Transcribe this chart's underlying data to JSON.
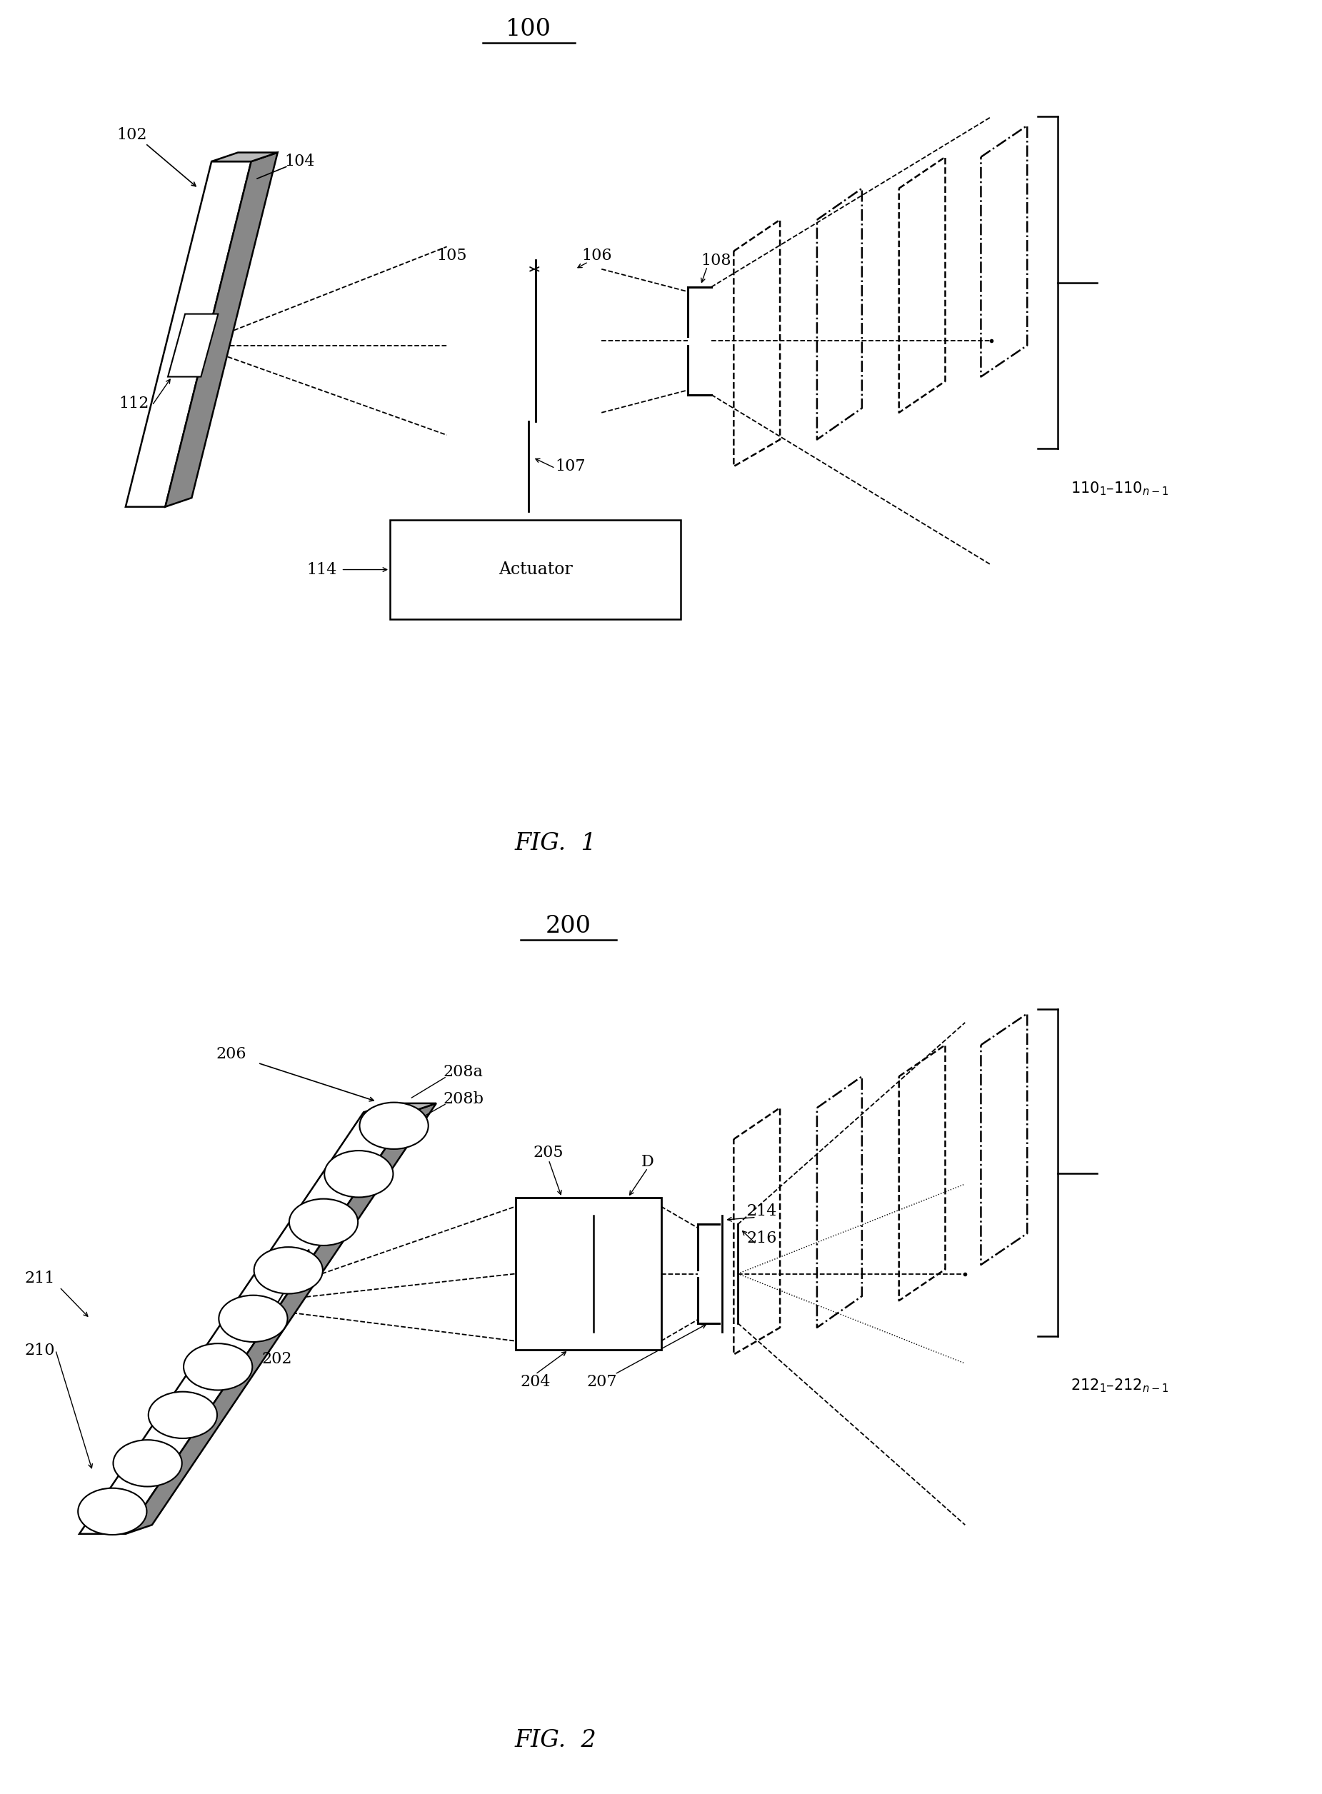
{
  "lc": "#000000",
  "bg": "#ffffff",
  "fig1_title": "100",
  "fig1_caption": "FIG.  1",
  "fig2_title": "200",
  "fig2_caption": "FIG.  2"
}
